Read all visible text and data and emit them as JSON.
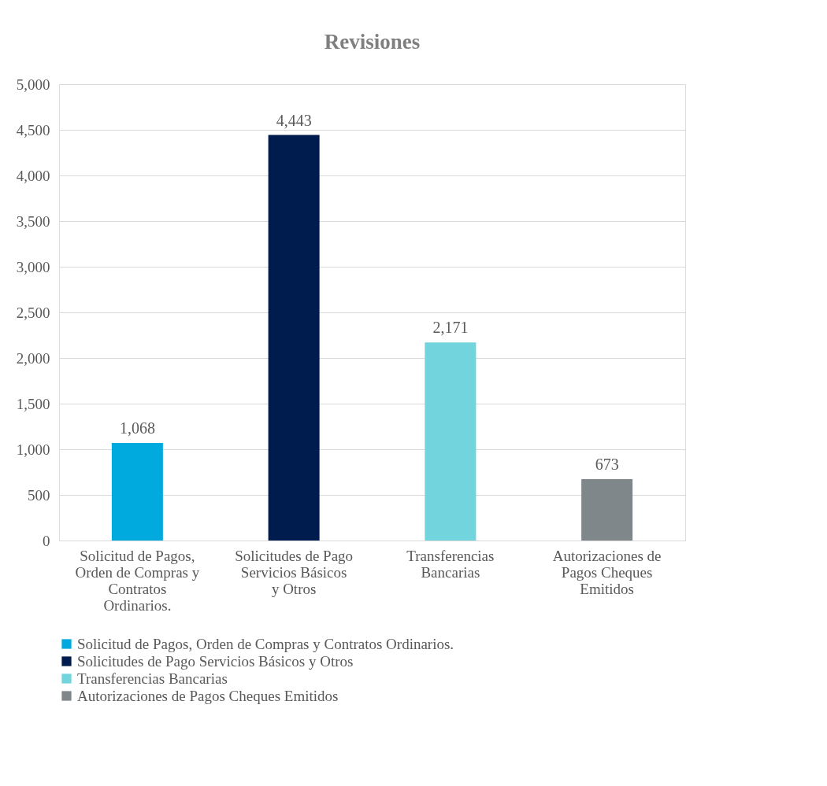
{
  "chart_data": {
    "type": "bar",
    "title": "Revisiones",
    "categories": [
      "Solicitud de Pagos, Orden de Compras y Contratos Ordinarios.",
      "Solicitudes de Pago Servicios  Básicos y Otros",
      "Transferencias Bancarias",
      "Autorizaciones de Pagos Cheques Emitidos"
    ],
    "series": [
      {
        "name": "Solicitud de Pagos, Orden de Compras y Contratos Ordinarios.",
        "color": "#00a9de",
        "values": [
          1068,
          null,
          null,
          null
        ],
        "value_labels": [
          "1,068",
          null,
          null,
          null
        ]
      },
      {
        "name": "Solicitudes de Pago Servicios  Básicos y Otros",
        "color": "#001c4f",
        "values": [
          null,
          4443,
          null,
          null
        ],
        "value_labels": [
          null,
          "4,443",
          null,
          null
        ]
      },
      {
        "name": "Transferencias Bancarias",
        "color": "#72d4dd",
        "values": [
          null,
          null,
          2171,
          null
        ],
        "value_labels": [
          null,
          null,
          "2,171",
          null
        ]
      },
      {
        "name": "Autorizaciones de Pagos Cheques Emitidos",
        "color": "#7f878b",
        "values": [
          null,
          null,
          null,
          673
        ],
        "value_labels": [
          null,
          null,
          null,
          "673"
        ]
      }
    ],
    "ylim": [
      0,
      5000
    ],
    "yticks": [
      0,
      500,
      {
        "value": 1000,
        "label": "1,000"
      },
      {
        "value": 1500,
        "label": "1,500"
      },
      {
        "value": 2000,
        "label": "2,000"
      },
      {
        "value": 2500,
        "label": "2,500"
      },
      {
        "value": 3000,
        "label": "3,000"
      },
      {
        "value": 3500,
        "label": "3,500"
      },
      {
        "value": 4000,
        "label": "4,000"
      },
      {
        "value": 4500,
        "label": "4,500"
      },
      {
        "value": 5000,
        "label": "5,000"
      }
    ],
    "grid": "y",
    "legend": "bottom"
  }
}
